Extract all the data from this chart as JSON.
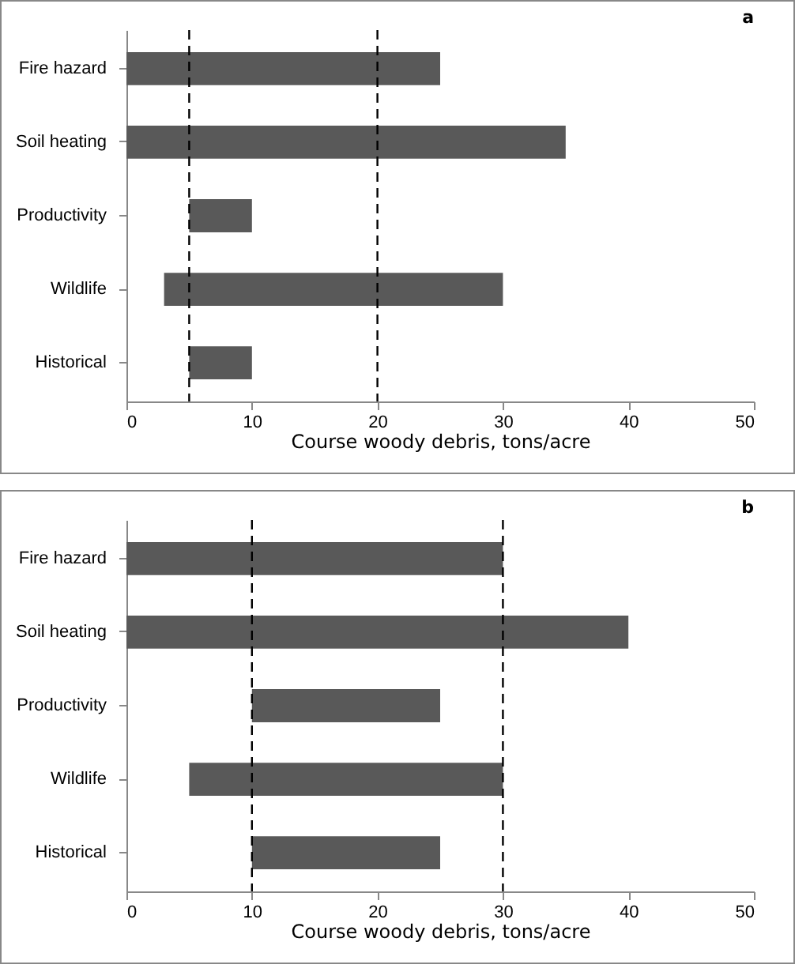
{
  "chart_data": [
    {
      "type": "bar",
      "orientation": "horizontal",
      "title": "a",
      "xlabel": "Course woody debris, tons/acre",
      "categories": [
        "Fire hazard",
        "Soil heating",
        "Productivity",
        "Wildlife",
        "Historical"
      ],
      "base": [
        0,
        0,
        5,
        3,
        5
      ],
      "values": [
        25,
        35,
        5,
        27,
        5
      ],
      "color": "#595959",
      "xlim": [
        0,
        50
      ],
      "xticks": [
        0,
        10,
        20,
        30,
        40,
        50
      ],
      "ref_lines": [
        {
          "axis": "x",
          "value": 5,
          "line_style": "dashed"
        },
        {
          "axis": "x",
          "value": 20,
          "line_style": "dashed"
        }
      ]
    },
    {
      "type": "bar",
      "orientation": "horizontal",
      "title": "b",
      "xlabel": "Course woody debris, tons/acre",
      "categories": [
        "Fire hazard",
        "Soil heating",
        "Productivity",
        "Wildlife",
        "Historical"
      ],
      "base": [
        0,
        0,
        10,
        5,
        10
      ],
      "values": [
        30,
        40,
        15,
        25,
        15
      ],
      "color": "#595959",
      "xlim": [
        0,
        50
      ],
      "xticks": [
        0,
        10,
        20,
        30,
        40,
        50
      ],
      "ref_lines": [
        {
          "axis": "x",
          "value": 10,
          "line_style": "dashed"
        },
        {
          "axis": "x",
          "value": 30,
          "line_style": "dashed"
        }
      ]
    }
  ]
}
